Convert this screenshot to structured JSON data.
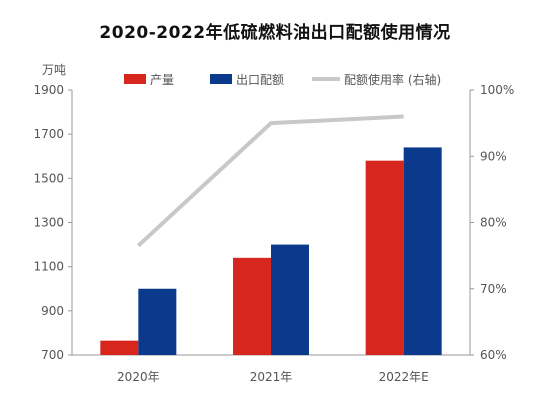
{
  "chart_data": {
    "type": "bar",
    "title": "2020-2022年低硫燃料油出口配额使用情况",
    "ylabel_unit": "万吨",
    "categories": [
      "2020年",
      "2021年",
      "2022年E"
    ],
    "series": [
      {
        "name": "产量",
        "kind": "bar",
        "axis": "left",
        "color": "#d7261e",
        "values": [
          765,
          1140,
          1580
        ]
      },
      {
        "name": "出口配额",
        "kind": "bar",
        "axis": "left",
        "color": "#0b3a8c",
        "values": [
          1000,
          1200,
          1640
        ]
      },
      {
        "name": "配额使用率 (右轴)",
        "kind": "line",
        "axis": "right",
        "color": "#c8c8c8",
        "values": [
          76.5,
          95,
          96
        ]
      }
    ],
    "y_left": {
      "min": 700,
      "max": 1900,
      "ticks": [
        700,
        900,
        1100,
        1300,
        1500,
        1700,
        1900
      ]
    },
    "y_right": {
      "min": 60,
      "max": 100,
      "ticks": [
        "60%",
        "70%",
        "80%",
        "90%",
        "100%"
      ]
    },
    "grid": false,
    "legend_position": "top"
  }
}
